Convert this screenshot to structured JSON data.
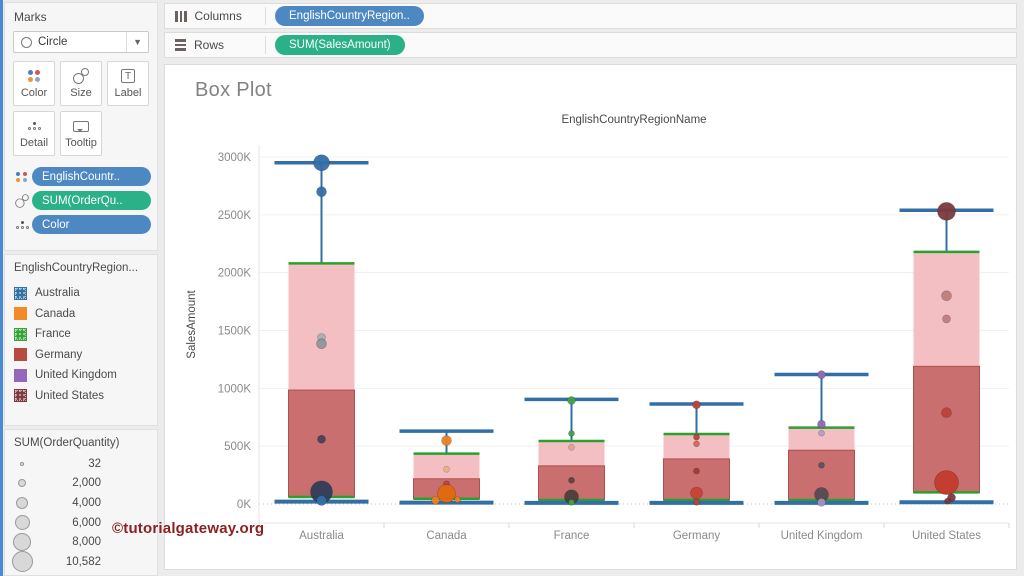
{
  "marks_card": {
    "title": "Marks",
    "mark_type_label": "Circle",
    "buttons": [
      {
        "label": "Color"
      },
      {
        "label": "Size"
      },
      {
        "label": "Label"
      },
      {
        "label": "Detail"
      },
      {
        "label": "Tooltip"
      }
    ],
    "pills": [
      {
        "label": "EnglishCountr..",
        "color": "#4e88c3"
      },
      {
        "label": "SUM(OrderQu..",
        "color": "#2bb187"
      },
      {
        "label": "Color",
        "color": "#4e88c3"
      }
    ]
  },
  "color_legend": {
    "title": "EnglishCountryRegion...",
    "items": [
      {
        "label": "Australia",
        "color": "#3173a7",
        "textured": true
      },
      {
        "label": "Canada",
        "color": "#f28a2a",
        "textured": false
      },
      {
        "label": "France",
        "color": "#38a339",
        "textured": true
      },
      {
        "label": "Germany",
        "color": "#b84b41",
        "textured": false
      },
      {
        "label": "United Kingdom",
        "color": "#9467bd",
        "textured": false
      },
      {
        "label": "United States",
        "color": "#7e3a3e",
        "textured": true
      }
    ]
  },
  "size_legend": {
    "title": "SUM(OrderQuantity)",
    "items": [
      {
        "label": "32",
        "d": 3.5
      },
      {
        "label": "2,000",
        "d": 8
      },
      {
        "label": "4,000",
        "d": 12
      },
      {
        "label": "6,000",
        "d": 15
      },
      {
        "label": "8,000",
        "d": 18
      },
      {
        "label": "10,582",
        "d": 21
      }
    ]
  },
  "shelves": {
    "columns_label": "Columns",
    "columns_pill": {
      "label": "EnglishCountryRegion..",
      "color": "#4e88c3"
    },
    "rows_label": "Rows",
    "rows_pill": {
      "label": "SUM(SalesAmount)",
      "color": "#2bb187"
    }
  },
  "watermark": "©tutorialgateway.org",
  "chart_data": {
    "type": "boxplot",
    "title": "Box Plot",
    "column_header": "EnglishCountryRegionName",
    "ylabel": "SalesAmount",
    "y_unit": "K",
    "ylim": [
      0,
      3000
    ],
    "y_ticks": [
      0,
      500,
      1000,
      1500,
      2000,
      2500,
      3000
    ],
    "categories": [
      "Australia",
      "Canada",
      "France",
      "Germany",
      "United Kingdom",
      "United States"
    ],
    "colors": {
      "box_upper": "#f3bfc2",
      "box_lower": "#ca6f70",
      "box_lower_border": "#b04f4c",
      "hinge": "#2ca02c",
      "whisker": "#336fa7",
      "grid": "#f1f1f1",
      "zero_line": "#c4c4c4",
      "axis_line": "#e4e4e4",
      "axis_text": "#8a8a8a",
      "header_text": "#4a4a4a"
    },
    "series": [
      {
        "name": "Australia",
        "whisker_top": 2950,
        "q3": 2080,
        "median": 985,
        "q1": 60,
        "whisker_bottom": 20,
        "points": [
          {
            "v": 2950,
            "r": 8,
            "color": "#336fa7"
          },
          {
            "v": 2700,
            "r": 5,
            "color": "#336fa7"
          },
          {
            "v": 1440,
            "r": 4,
            "color": "#a8adb3"
          },
          {
            "v": 1385,
            "r": 5,
            "color": "#8f959b"
          },
          {
            "v": 560,
            "r": 4,
            "color": "#44415a"
          },
          {
            "v": 105,
            "r": 11,
            "color": "#2f3d57"
          },
          {
            "v": 30,
            "r": 5,
            "color": "#336fa7"
          }
        ]
      },
      {
        "name": "Canada",
        "whisker_top": 630,
        "q3": 435,
        "median": 218,
        "q1": 45,
        "whisker_bottom": 12,
        "points": [
          {
            "v": 548,
            "r": 5,
            "color": "#e8821e"
          },
          {
            "v": 300,
            "r": 3,
            "color": "#e6b386"
          },
          {
            "v": 175,
            "r": 3,
            "color": "#b5443c"
          },
          {
            "v": 90,
            "r": 9,
            "color": "#e2680d"
          },
          {
            "v": 32,
            "r": 4,
            "color": "#e8821e",
            "dx": -11
          },
          {
            "v": 38,
            "r": 3,
            "color": "#e8821e",
            "dx": 11
          }
        ]
      },
      {
        "name": "France",
        "whisker_top": 905,
        "q3": 545,
        "median": 330,
        "q1": 35,
        "whisker_bottom": 10,
        "points": [
          {
            "v": 895,
            "r": 4,
            "color": "#43a048"
          },
          {
            "v": 610,
            "r": 3,
            "color": "#43a048"
          },
          {
            "v": 490,
            "r": 3,
            "color": "#dda39b"
          },
          {
            "v": 205,
            "r": 3,
            "color": "#5c4242"
          },
          {
            "v": 62,
            "r": 7,
            "color": "#4a3f38"
          },
          {
            "v": 14,
            "r": 3,
            "color": "#43a048"
          }
        ]
      },
      {
        "name": "Germany",
        "whisker_top": 865,
        "q3": 605,
        "median": 390,
        "q1": 35,
        "whisker_bottom": 10,
        "points": [
          {
            "v": 858,
            "r": 4,
            "color": "#bb4238"
          },
          {
            "v": 578,
            "r": 3,
            "color": "#bb4238"
          },
          {
            "v": 520,
            "r": 3,
            "color": "#c96a57"
          },
          {
            "v": 285,
            "r": 3,
            "color": "#a03a32"
          },
          {
            "v": 95,
            "r": 6,
            "color": "#c44335"
          },
          {
            "v": 14,
            "r": 3,
            "color": "#bb4238"
          }
        ]
      },
      {
        "name": "United Kingdom",
        "whisker_top": 1120,
        "q3": 660,
        "median": 465,
        "q1": 35,
        "whisker_bottom": 10,
        "points": [
          {
            "v": 1118,
            "r": 4,
            "color": "#8d6ab1"
          },
          {
            "v": 690,
            "r": 4,
            "color": "#8d6ab1"
          },
          {
            "v": 612,
            "r": 3,
            "color": "#b59cc9"
          },
          {
            "v": 335,
            "r": 3,
            "color": "#5f4f63"
          },
          {
            "v": 82,
            "r": 7,
            "color": "#544a52"
          },
          {
            "v": 14,
            "r": 4,
            "color": "#a68fc2"
          }
        ]
      },
      {
        "name": "United States",
        "whisker_top": 2540,
        "q3": 2180,
        "median": 1190,
        "q1": 100,
        "whisker_bottom": 15,
        "points": [
          {
            "v": 2530,
            "r": 9,
            "color": "#7a393d"
          },
          {
            "v": 1800,
            "r": 5,
            "color": "#bd7d7d"
          },
          {
            "v": 1600,
            "r": 4,
            "color": "#bd7d7d"
          },
          {
            "v": 790,
            "r": 5,
            "color": "#bb4238"
          },
          {
            "v": 185,
            "r": 12,
            "color": "#c23a2c"
          },
          {
            "v": 55,
            "r": 4,
            "color": "#7a393d",
            "dx": 5
          },
          {
            "v": 25,
            "r": 3,
            "color": "#7a393d",
            "dx": 1
          }
        ]
      }
    ]
  }
}
